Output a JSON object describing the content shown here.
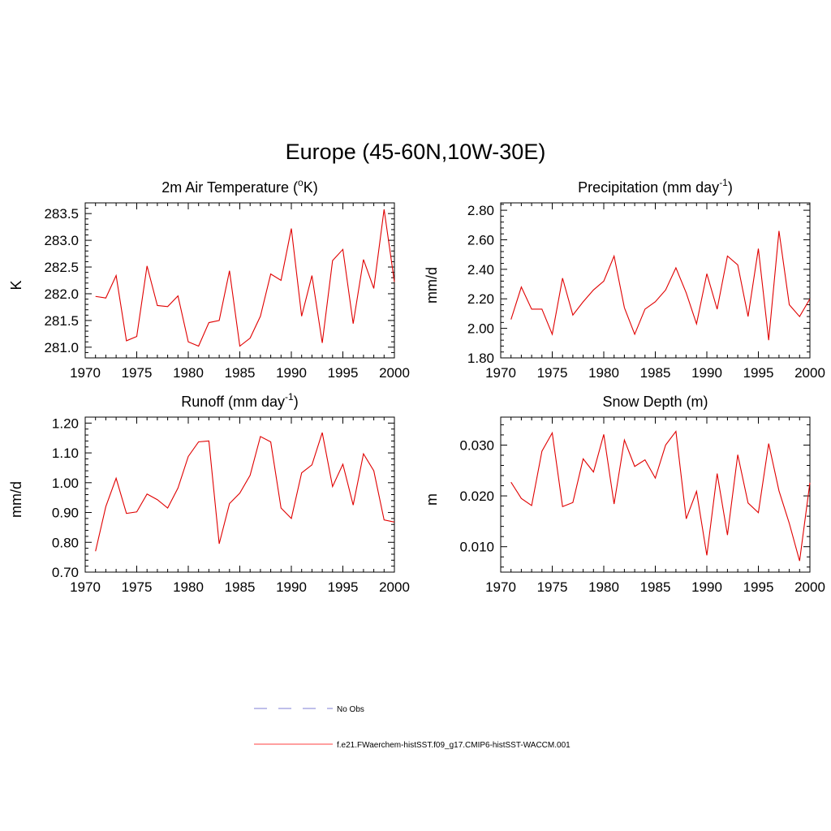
{
  "main_title": "Europe (45-60N,10W-30E)",
  "legend": {
    "entries": [
      {
        "label": "No Obs",
        "color": "#9999dd",
        "style": "dashed"
      },
      {
        "label": "f.e21.FWaerchem-histSST.f09_g17.CMIP6-histSST-WACCM.001",
        "color": "#ff6666",
        "style": "solid"
      }
    ]
  },
  "line_color": "#e00000",
  "chart_data": [
    {
      "type": "line",
      "title_main": "2m Air Temperature (",
      "title_sup": "o",
      "title_tail": "K)",
      "ylabel": "K",
      "xlim": [
        1970,
        2000
      ],
      "ylim": [
        280.8,
        283.7
      ],
      "xticks": [
        "1970",
        "1975",
        "1980",
        "1985",
        "1990",
        "1995",
        "2000"
      ],
      "yticks": [
        "281.0",
        "281.5",
        "282.0",
        "282.5",
        "283.0",
        "283.5"
      ],
      "x": [
        1971,
        1972,
        1973,
        1974,
        1975,
        1976,
        1977,
        1978,
        1979,
        1980,
        1981,
        1982,
        1983,
        1984,
        1985,
        1986,
        1987,
        1988,
        1989,
        1990,
        1991,
        1992,
        1993,
        1994,
        1995,
        1996,
        1997,
        1998,
        1999,
        2000
      ],
      "values": [
        281.95,
        281.92,
        282.34,
        281.12,
        281.2,
        282.52,
        281.78,
        281.76,
        281.96,
        281.1,
        281.02,
        281.46,
        281.5,
        282.43,
        281.02,
        281.17,
        281.58,
        282.37,
        282.25,
        283.22,
        281.58,
        282.34,
        281.08,
        282.62,
        282.83,
        281.44,
        282.64,
        282.1,
        283.58,
        282.22
      ]
    },
    {
      "type": "line",
      "title_main": "Precipitation (mm day",
      "title_sup": "-1",
      "title_tail": ")",
      "ylabel": "mm/d",
      "xlim": [
        1970,
        2000
      ],
      "ylim": [
        1.8,
        2.85
      ],
      "xticks": [
        "1970",
        "1975",
        "1980",
        "1985",
        "1990",
        "1995",
        "2000"
      ],
      "yticks": [
        "1.80",
        "2.00",
        "2.20",
        "2.40",
        "2.60",
        "2.80"
      ],
      "x": [
        1971,
        1972,
        1973,
        1974,
        1975,
        1976,
        1977,
        1978,
        1979,
        1980,
        1981,
        1982,
        1983,
        1984,
        1985,
        1986,
        1987,
        1988,
        1989,
        1990,
        1991,
        1992,
        1993,
        1994,
        1995,
        1996,
        1997,
        1998,
        1999,
        2000
      ],
      "values": [
        2.06,
        2.28,
        2.13,
        2.13,
        1.96,
        2.34,
        2.09,
        2.18,
        2.26,
        2.32,
        2.49,
        2.14,
        1.96,
        2.13,
        2.18,
        2.26,
        2.41,
        2.24,
        2.03,
        2.37,
        2.13,
        2.49,
        2.43,
        2.08,
        2.54,
        1.92,
        2.66,
        2.16,
        2.08,
        2.2
      ]
    },
    {
      "type": "line",
      "title_main": "Runoff (mm day",
      "title_sup": "-1",
      "title_tail": ")",
      "ylabel": "mm/d",
      "xlim": [
        1970,
        2000
      ],
      "ylim": [
        0.7,
        1.22
      ],
      "xticks": [
        "1970",
        "1975",
        "1980",
        "1985",
        "1990",
        "1995",
        "2000"
      ],
      "yticks": [
        "0.70",
        "0.80",
        "0.90",
        "1.00",
        "1.10",
        "1.20"
      ],
      "x": [
        1971,
        1972,
        1973,
        1974,
        1975,
        1976,
        1977,
        1978,
        1979,
        1980,
        1981,
        1982,
        1983,
        1984,
        1985,
        1986,
        1987,
        1988,
        1989,
        1990,
        1991,
        1992,
        1993,
        1994,
        1995,
        1996,
        1997,
        1998,
        1999,
        2000
      ],
      "values": [
        0.77,
        0.92,
        1.015,
        0.897,
        0.902,
        0.962,
        0.943,
        0.915,
        0.982,
        1.088,
        1.137,
        1.14,
        0.795,
        0.93,
        0.965,
        1.025,
        1.155,
        1.137,
        0.915,
        0.88,
        1.033,
        1.06,
        1.168,
        0.987,
        1.062,
        0.925,
        1.097,
        1.04,
        0.875,
        0.868
      ]
    },
    {
      "type": "line",
      "title_main": "Snow Depth (m)",
      "title_sup": "",
      "title_tail": "",
      "ylabel": "m",
      "xlim": [
        1970,
        2000
      ],
      "ylim": [
        0.005,
        0.0355
      ],
      "xticks": [
        "1970",
        "1975",
        "1980",
        "1985",
        "1990",
        "1995",
        "2000"
      ],
      "yticks": [
        "0.010",
        "0.020",
        "0.030"
      ],
      "x": [
        1971,
        1972,
        1973,
        1974,
        1975,
        1976,
        1977,
        1978,
        1979,
        1980,
        1981,
        1982,
        1983,
        1984,
        1985,
        1986,
        1987,
        1988,
        1989,
        1990,
        1991,
        1992,
        1993,
        1994,
        1995,
        1996,
        1997,
        1998,
        1999,
        2000
      ],
      "values": [
        0.0227,
        0.0195,
        0.0181,
        0.0288,
        0.0324,
        0.0179,
        0.0187,
        0.0273,
        0.0247,
        0.0321,
        0.0184,
        0.031,
        0.0258,
        0.0271,
        0.0235,
        0.03,
        0.0327,
        0.0155,
        0.0209,
        0.0083,
        0.0244,
        0.0123,
        0.0281,
        0.0186,
        0.0167,
        0.0303,
        0.021,
        0.0146,
        0.0072,
        0.0226
      ]
    }
  ]
}
